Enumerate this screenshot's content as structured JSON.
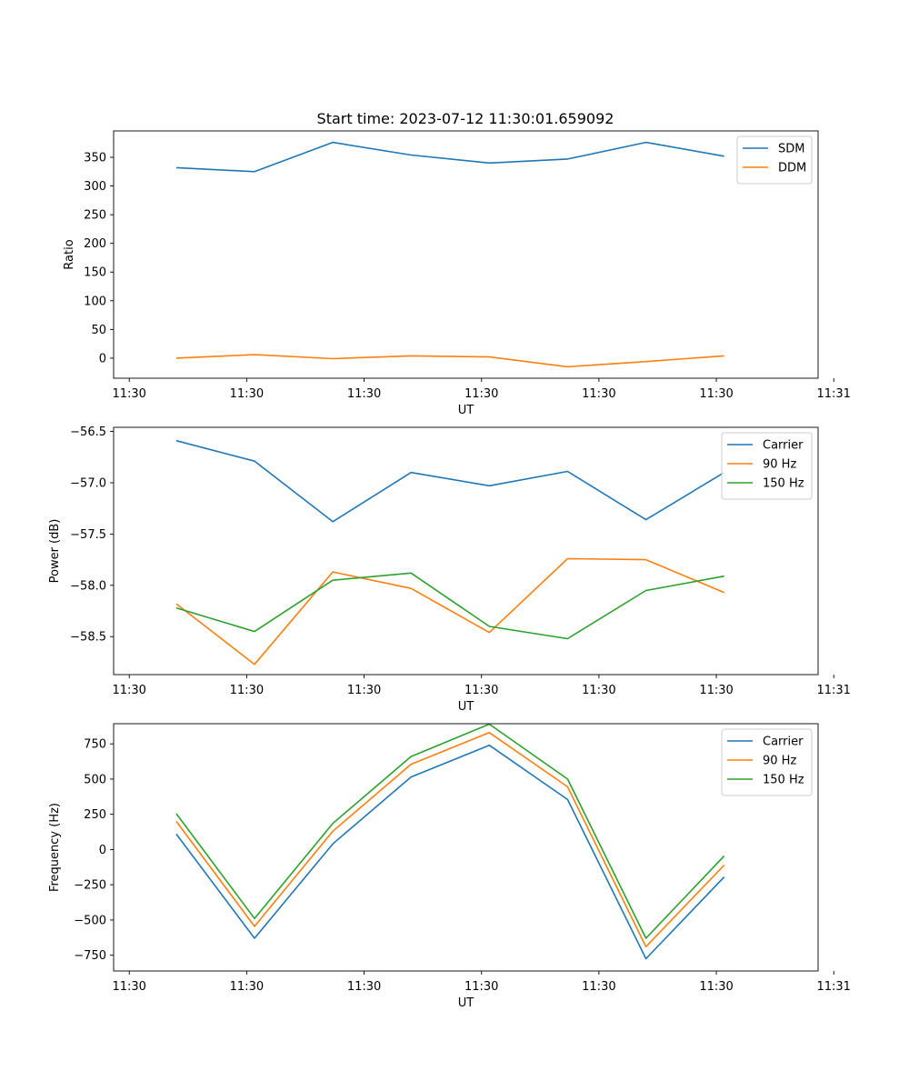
{
  "title": "Start time: 2023-07-12 11:30:01.659092",
  "chart_data": [
    {
      "type": "line",
      "title": "Start time: 2023-07-12 11:30:01.659092",
      "xlabel": "UT",
      "ylabel": "Ratio",
      "x_tick_labels": [
        "11:30",
        "11:30",
        "11:30",
        "11:30",
        "11:30",
        "11:30",
        "11:31"
      ],
      "x": [
        1,
        2,
        3,
        4,
        5,
        6,
        7,
        8
      ],
      "xlim": [
        0.2,
        9.2
      ],
      "ylim": [
        -35,
        396
      ],
      "yticks": [
        0,
        50,
        100,
        150,
        200,
        250,
        300,
        350
      ],
      "legend_position": "top-right",
      "series": [
        {
          "name": "SDM",
          "color": "#1f77b4",
          "values": [
            332,
            325,
            376,
            354,
            340,
            347,
            376,
            352
          ]
        },
        {
          "name": "DDM",
          "color": "#ff7f0e",
          "values": [
            0,
            6,
            -1,
            4,
            2,
            -15,
            -6,
            4
          ]
        }
      ]
    },
    {
      "type": "line",
      "title": "",
      "xlabel": "UT",
      "ylabel": "Power (dB)",
      "x_tick_labels": [
        "11:30",
        "11:30",
        "11:30",
        "11:30",
        "11:30",
        "11:30",
        "11:31"
      ],
      "x": [
        1,
        2,
        3,
        4,
        5,
        6,
        7,
        8
      ],
      "xlim": [
        0.2,
        9.2
      ],
      "ylim": [
        -58.87,
        -56.46
      ],
      "yticks": [
        -58.5,
        -58.0,
        -57.5,
        -57.0,
        -56.5
      ],
      "ytick_labels": [
        "−58.5",
        "−58.0",
        "−57.5",
        "−57.0",
        "−56.5"
      ],
      "legend_position": "top-right",
      "series": [
        {
          "name": "Carrier",
          "color": "#1f77b4",
          "values": [
            -56.59,
            -56.79,
            -57.38,
            -56.9,
            -57.03,
            -56.89,
            -57.36,
            -56.9
          ]
        },
        {
          "name": "90 Hz",
          "color": "#ff7f0e",
          "values": [
            -58.18,
            -58.77,
            -57.87,
            -58.03,
            -58.46,
            -57.74,
            -57.75,
            -58.07
          ]
        },
        {
          "name": "150 Hz",
          "color": "#2ca02c",
          "values": [
            -58.22,
            -58.45,
            -57.95,
            -57.88,
            -58.4,
            -58.52,
            -58.05,
            -57.91
          ]
        }
      ]
    },
    {
      "type": "line",
      "title": "",
      "xlabel": "UT",
      "ylabel": "Frequency (Hz)",
      "x_tick_labels": [
        "11:30",
        "11:30",
        "11:30",
        "11:30",
        "11:30",
        "11:30",
        "11:31"
      ],
      "x": [
        1,
        2,
        3,
        4,
        5,
        6,
        7,
        8
      ],
      "xlim": [
        0.2,
        9.2
      ],
      "ylim": [
        -862,
        893
      ],
      "yticks": [
        -750,
        -500,
        -250,
        0,
        250,
        500,
        750
      ],
      "ytick_labels": [
        "−750",
        "−500",
        "−250",
        "0",
        "250",
        "500",
        "750"
      ],
      "legend_position": "top-right",
      "series": [
        {
          "name": "Carrier",
          "color": "#1f77b4",
          "values": [
            110,
            -630,
            40,
            515,
            740,
            355,
            -775,
            -195
          ]
        },
        {
          "name": "90 Hz",
          "color": "#ff7f0e",
          "values": [
            200,
            -545,
            130,
            605,
            830,
            445,
            -690,
            -110
          ]
        },
        {
          "name": "150 Hz",
          "color": "#2ca02c",
          "values": [
            255,
            -490,
            185,
            660,
            890,
            500,
            -630,
            -45
          ]
        }
      ]
    }
  ]
}
